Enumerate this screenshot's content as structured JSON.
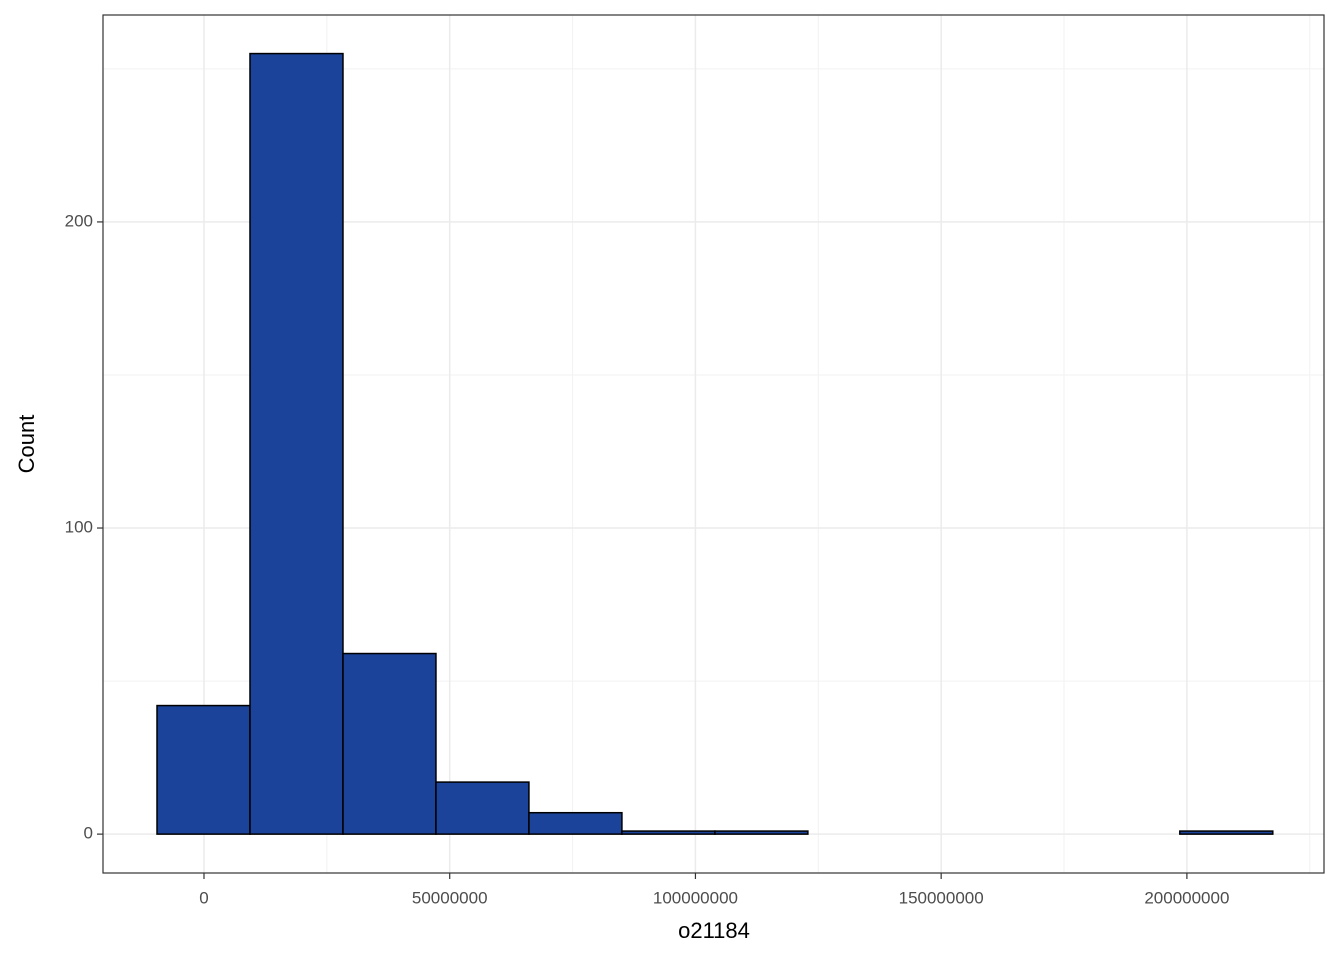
{
  "chart_data": {
    "type": "histogram",
    "x_label": "o21184",
    "y_label": "Count",
    "bins": [
      -9560000,
      9360000,
      28280000,
      47200000,
      66120000,
      85040000,
      103960000,
      122880000,
      141800000,
      160720000,
      179640000,
      198560000,
      217480000
    ],
    "counts": [
      42,
      255,
      59,
      17,
      7,
      1,
      1,
      0,
      0,
      0,
      0,
      1
    ],
    "color": "#1a4399",
    "edge_color": "#000000",
    "xlim": [
      -20550000,
      227900000
    ],
    "ylim": [
      -12.7,
      267.6
    ],
    "xticks": [
      0,
      50000000,
      100000000,
      150000000,
      200000000
    ],
    "yticks": [
      0,
      100,
      200
    ],
    "grid": true
  }
}
